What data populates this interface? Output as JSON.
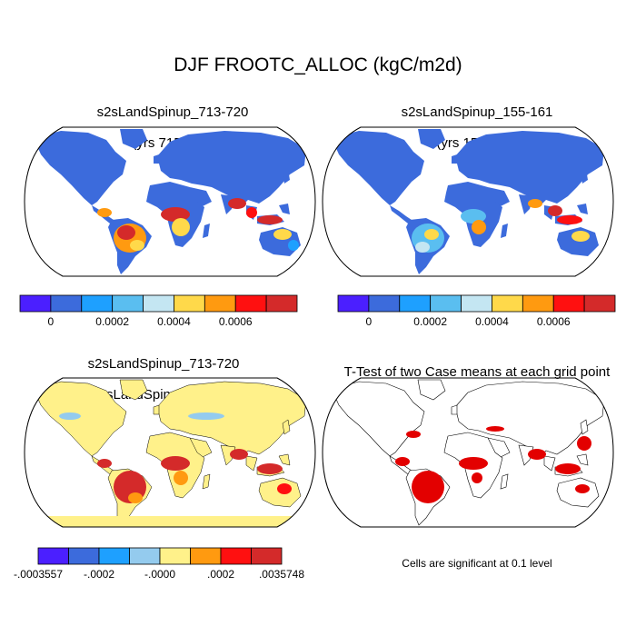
{
  "title": "DJF FROOTC_ALLOC (kgC/m2d)",
  "panels": [
    {
      "title_line1": "s2sLandSpinup_713-720",
      "title_line2": "(yrs 715-721)"
    },
    {
      "title_line1": "s2sLandSpinup_155-161",
      "title_line2": "(yrs 155-161)"
    },
    {
      "title_line1": "s2sLandSpinup_713-720",
      "title_line2": "- s2sLandSpinup_155-161"
    },
    {
      "title_line1": "T-Test of two Case means at each grid point",
      "title_line2": ""
    }
  ],
  "colorbars": {
    "top_colors": [
      "#4b1fff",
      "#3c6bdc",
      "#1ea0ff",
      "#5abef0",
      "#c4e6f2",
      "#ffd94a",
      "#ff9a10",
      "#ff1010",
      "#d42a2a"
    ],
    "top_labels": [
      "0",
      "0.0002",
      "0.0004",
      "0.0006"
    ],
    "diff_colors": [
      "#4b1fff",
      "#3c6bdc",
      "#1ea0ff",
      "#94cbee",
      "#fff18a",
      "#ff9a10",
      "#ff1010",
      "#d42a2a"
    ],
    "diff_labels": [
      "-.0003557",
      "-.0002",
      "-.0000",
      ".0002",
      ".0035748"
    ]
  },
  "significance_note": "Cells are significant at 0.1 level",
  "colors": {
    "ocean": "#ffffff",
    "land_base_abs": "#3c6bdc",
    "land_base_diff": "#fff18a",
    "significant": "#e30000",
    "outline": "#000000"
  }
}
